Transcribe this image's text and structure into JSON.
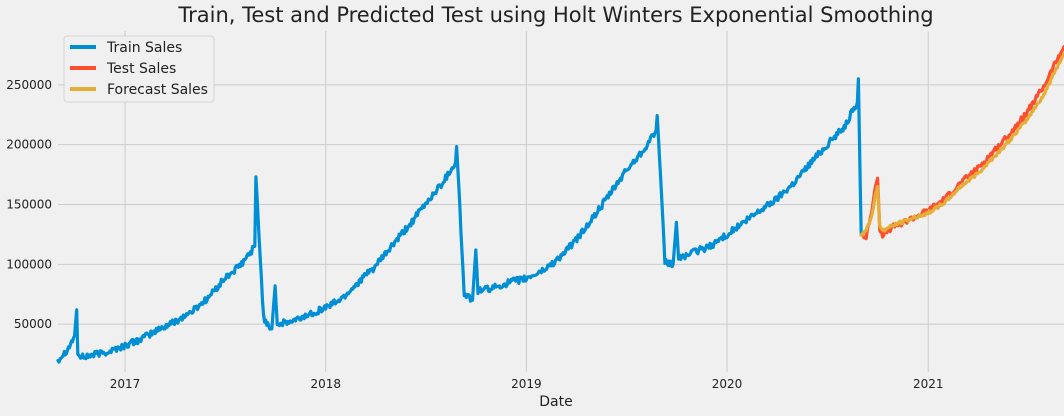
{
  "chart_data": {
    "type": "line",
    "title": "Train, Test and Predicted Test using Holt Winters Exponential Smoothing",
    "xlabel": "Date",
    "ylabel": "",
    "x_range": [
      "2016-09-01",
      "2021-09-05"
    ],
    "ylim": [
      10000,
      295000
    ],
    "grid": true,
    "legend_position": "top-left",
    "x_tick_labels": [
      "2017",
      "2018",
      "2019",
      "2020",
      "2021"
    ],
    "y_tick_values": [
      50000,
      100000,
      150000,
      200000,
      250000
    ],
    "y_tick_labels": [
      "50000",
      "100000",
      "150000",
      "200000",
      "250000"
    ],
    "series": [
      {
        "name": "Train Sales",
        "color": "#008fd5",
        "x": [
          "2016-09-01",
          "2016-09-20",
          "2016-10-01",
          "2016-10-05",
          "2016-10-07",
          "2016-10-12",
          "2016-11-01",
          "2016-12-01",
          "2017-01-01",
          "2017-02-01",
          "2017-03-01",
          "2017-04-01",
          "2017-05-01",
          "2017-06-01",
          "2017-07-01",
          "2017-08-01",
          "2017-08-25",
          "2017-08-27",
          "2017-09-10",
          "2017-09-25",
          "2017-10-01",
          "2017-10-05",
          "2017-11-01",
          "2017-12-01",
          "2018-01-01",
          "2018-02-01",
          "2018-03-01",
          "2018-04-01",
          "2018-05-01",
          "2018-06-01",
          "2018-07-01",
          "2018-08-01",
          "2018-08-25",
          "2018-08-27",
          "2018-09-10",
          "2018-09-25",
          "2018-10-01",
          "2018-10-05",
          "2018-11-01",
          "2018-12-01",
          "2019-01-01",
          "2019-02-01",
          "2019-03-01",
          "2019-04-01",
          "2019-05-01",
          "2019-06-01",
          "2019-07-01",
          "2019-08-01",
          "2019-08-25",
          "2019-08-27",
          "2019-09-10",
          "2019-09-25",
          "2019-10-01",
          "2019-10-05",
          "2019-11-01",
          "2019-12-01",
          "2020-01-01",
          "2020-02-01",
          "2020-03-01",
          "2020-04-01",
          "2020-05-01",
          "2020-06-01",
          "2020-07-01",
          "2020-08-01",
          "2020-08-25",
          "2020-08-27",
          "2020-09-01"
        ],
        "y": [
          20000,
          30000,
          40000,
          62000,
          25000,
          22000,
          24000,
          27000,
          32000,
          38000,
          45000,
          52000,
          60000,
          72000,
          88000,
          100000,
          115000,
          172000,
          55000,
          46000,
          82000,
          50000,
          52000,
          58000,
          64000,
          72000,
          85000,
          98000,
          115000,
          132000,
          150000,
          168000,
          185000,
          200000,
          75000,
          70000,
          112000,
          78000,
          80000,
          85000,
          88000,
          95000,
          105000,
          120000,
          138000,
          158000,
          178000,
          195000,
          212000,
          225000,
          102000,
          100000,
          135000,
          105000,
          110000,
          115000,
          125000,
          135000,
          145000,
          155000,
          168000,
          185000,
          200000,
          215000,
          235000,
          255000,
          125000
        ]
      },
      {
        "name": "Test Sales",
        "color": "#fc4f30",
        "x": [
          "2020-09-01",
          "2020-09-10",
          "2020-09-20",
          "2020-09-27",
          "2020-10-01",
          "2020-10-05",
          "2020-10-10",
          "2020-11-01",
          "2020-12-01",
          "2021-01-01",
          "2021-02-01",
          "2021-03-01",
          "2021-04-01",
          "2021-05-01",
          "2021-06-01",
          "2021-07-01",
          "2021-08-01",
          "2021-08-20",
          "2021-09-05"
        ],
        "y": [
          125000,
          122000,
          145000,
          165000,
          172000,
          128000,
          125000,
          132000,
          138000,
          145000,
          155000,
          168000,
          180000,
          195000,
          210000,
          228000,
          250000,
          268000,
          282000
        ]
      },
      {
        "name": "Forecast Sales",
        "color": "#e5ae38",
        "x": [
          "2020-09-01",
          "2020-09-10",
          "2020-09-20",
          "2020-09-27",
          "2020-10-01",
          "2020-10-05",
          "2020-10-10",
          "2020-11-01",
          "2020-12-01",
          "2021-01-01",
          "2021-02-01",
          "2021-03-01",
          "2021-04-01",
          "2021-05-01",
          "2021-06-01",
          "2021-07-01",
          "2021-08-01",
          "2021-08-20",
          "2021-09-05"
        ],
        "y": [
          125000,
          128000,
          140000,
          158000,
          165000,
          132000,
          128000,
          133000,
          138000,
          143000,
          152000,
          165000,
          176000,
          190000,
          205000,
          222000,
          243000,
          262000,
          276000
        ]
      }
    ]
  }
}
